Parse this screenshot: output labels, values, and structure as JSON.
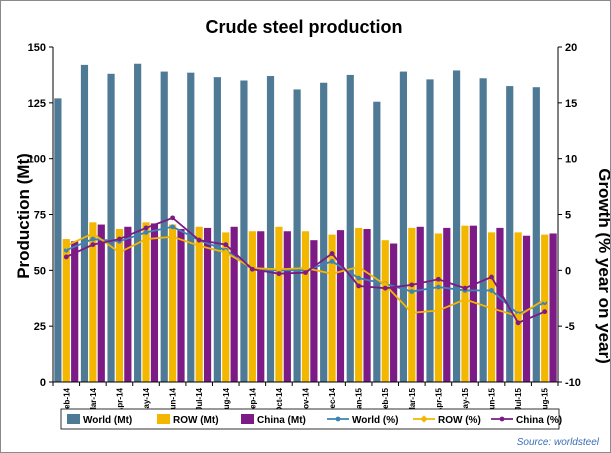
{
  "chart_data": {
    "type": "bar",
    "title": "Crude steel production",
    "ylabel": "Production (Mt)",
    "y2label": "Growth (% year on year)",
    "ylim": [
      0,
      150
    ],
    "y2lim": [
      -10,
      20
    ],
    "yticks": [
      "0",
      "25",
      "50",
      "75",
      "100",
      "125",
      "150"
    ],
    "y2ticks": [
      "-10",
      "-5",
      "0",
      "5",
      "10",
      "15",
      "20"
    ],
    "grid": false,
    "legend_position": "bottom",
    "source": "Source: worldsteel",
    "categories": [
      "Feb-14",
      "Mar-14",
      "Apr-14",
      "May-14",
      "Jun-14",
      "Jul-14",
      "Aug-14",
      "Sep-14",
      "Oct-14",
      "Nov-14",
      "Dec-14",
      "Jan-15",
      "Feb-15",
      "Mar-15",
      "Apr-15",
      "May-15",
      "Jun-15",
      "Jul-15",
      "Aug-15"
    ],
    "series": [
      {
        "name": "World (Mt)",
        "kind": "bar",
        "axis": "left",
        "color": "#4f7a96",
        "values": [
          127,
          142,
          138,
          142.5,
          139,
          138.5,
          136.5,
          135,
          137,
          131,
          134,
          137.5,
          125.5,
          139,
          135.5,
          139.5,
          136,
          132.5,
          132
        ]
      },
      {
        "name": "ROW (Mt)",
        "kind": "bar",
        "axis": "left",
        "color": "#f3b700",
        "values": [
          64,
          71.5,
          68.5,
          71.5,
          70.5,
          69.5,
          67,
          67.5,
          69.5,
          67.5,
          66,
          69,
          63.5,
          69,
          66.5,
          70,
          67,
          67,
          66
        ]
      },
      {
        "name": "China (Mt)",
        "kind": "bar",
        "axis": "left",
        "color": "#7c1a86",
        "values": [
          63,
          70.5,
          69.5,
          71,
          68.5,
          69,
          69.5,
          67.5,
          67.5,
          63.5,
          68,
          68.5,
          62,
          69.5,
          69,
          70,
          69,
          65.5,
          66.5
        ]
      },
      {
        "name": "World (%)",
        "kind": "line",
        "axis": "right",
        "color": "#3d83b5",
        "values": [
          1.8,
          2.8,
          2.6,
          3.4,
          3.9,
          2.7,
          1.8,
          0.1,
          0.0,
          0.0,
          0.8,
          -0.7,
          -1.2,
          -1.9,
          -1.5,
          -1.8,
          -1.8,
          -3.9,
          -2.9
        ]
      },
      {
        "name": "ROW (%)",
        "kind": "line",
        "axis": "right",
        "color": "#f3b700",
        "values": [
          2.2,
          3.3,
          1.6,
          2.8,
          3.0,
          2.2,
          1.6,
          0.2,
          0.1,
          0.2,
          -0.3,
          0.3,
          -1.3,
          -3.8,
          -3.6,
          -2.6,
          -3.4,
          -4.1,
          -2.6
        ]
      },
      {
        "name": "China (%)",
        "kind": "line",
        "axis": "right",
        "color": "#7c1a86",
        "values": [
          1.2,
          2.3,
          2.8,
          3.8,
          4.7,
          2.7,
          2.3,
          0.1,
          -0.3,
          -0.2,
          1.5,
          -1.4,
          -1.6,
          -1.3,
          -0.8,
          -1.6,
          -0.6,
          -4.7,
          -3.7
        ]
      }
    ]
  }
}
